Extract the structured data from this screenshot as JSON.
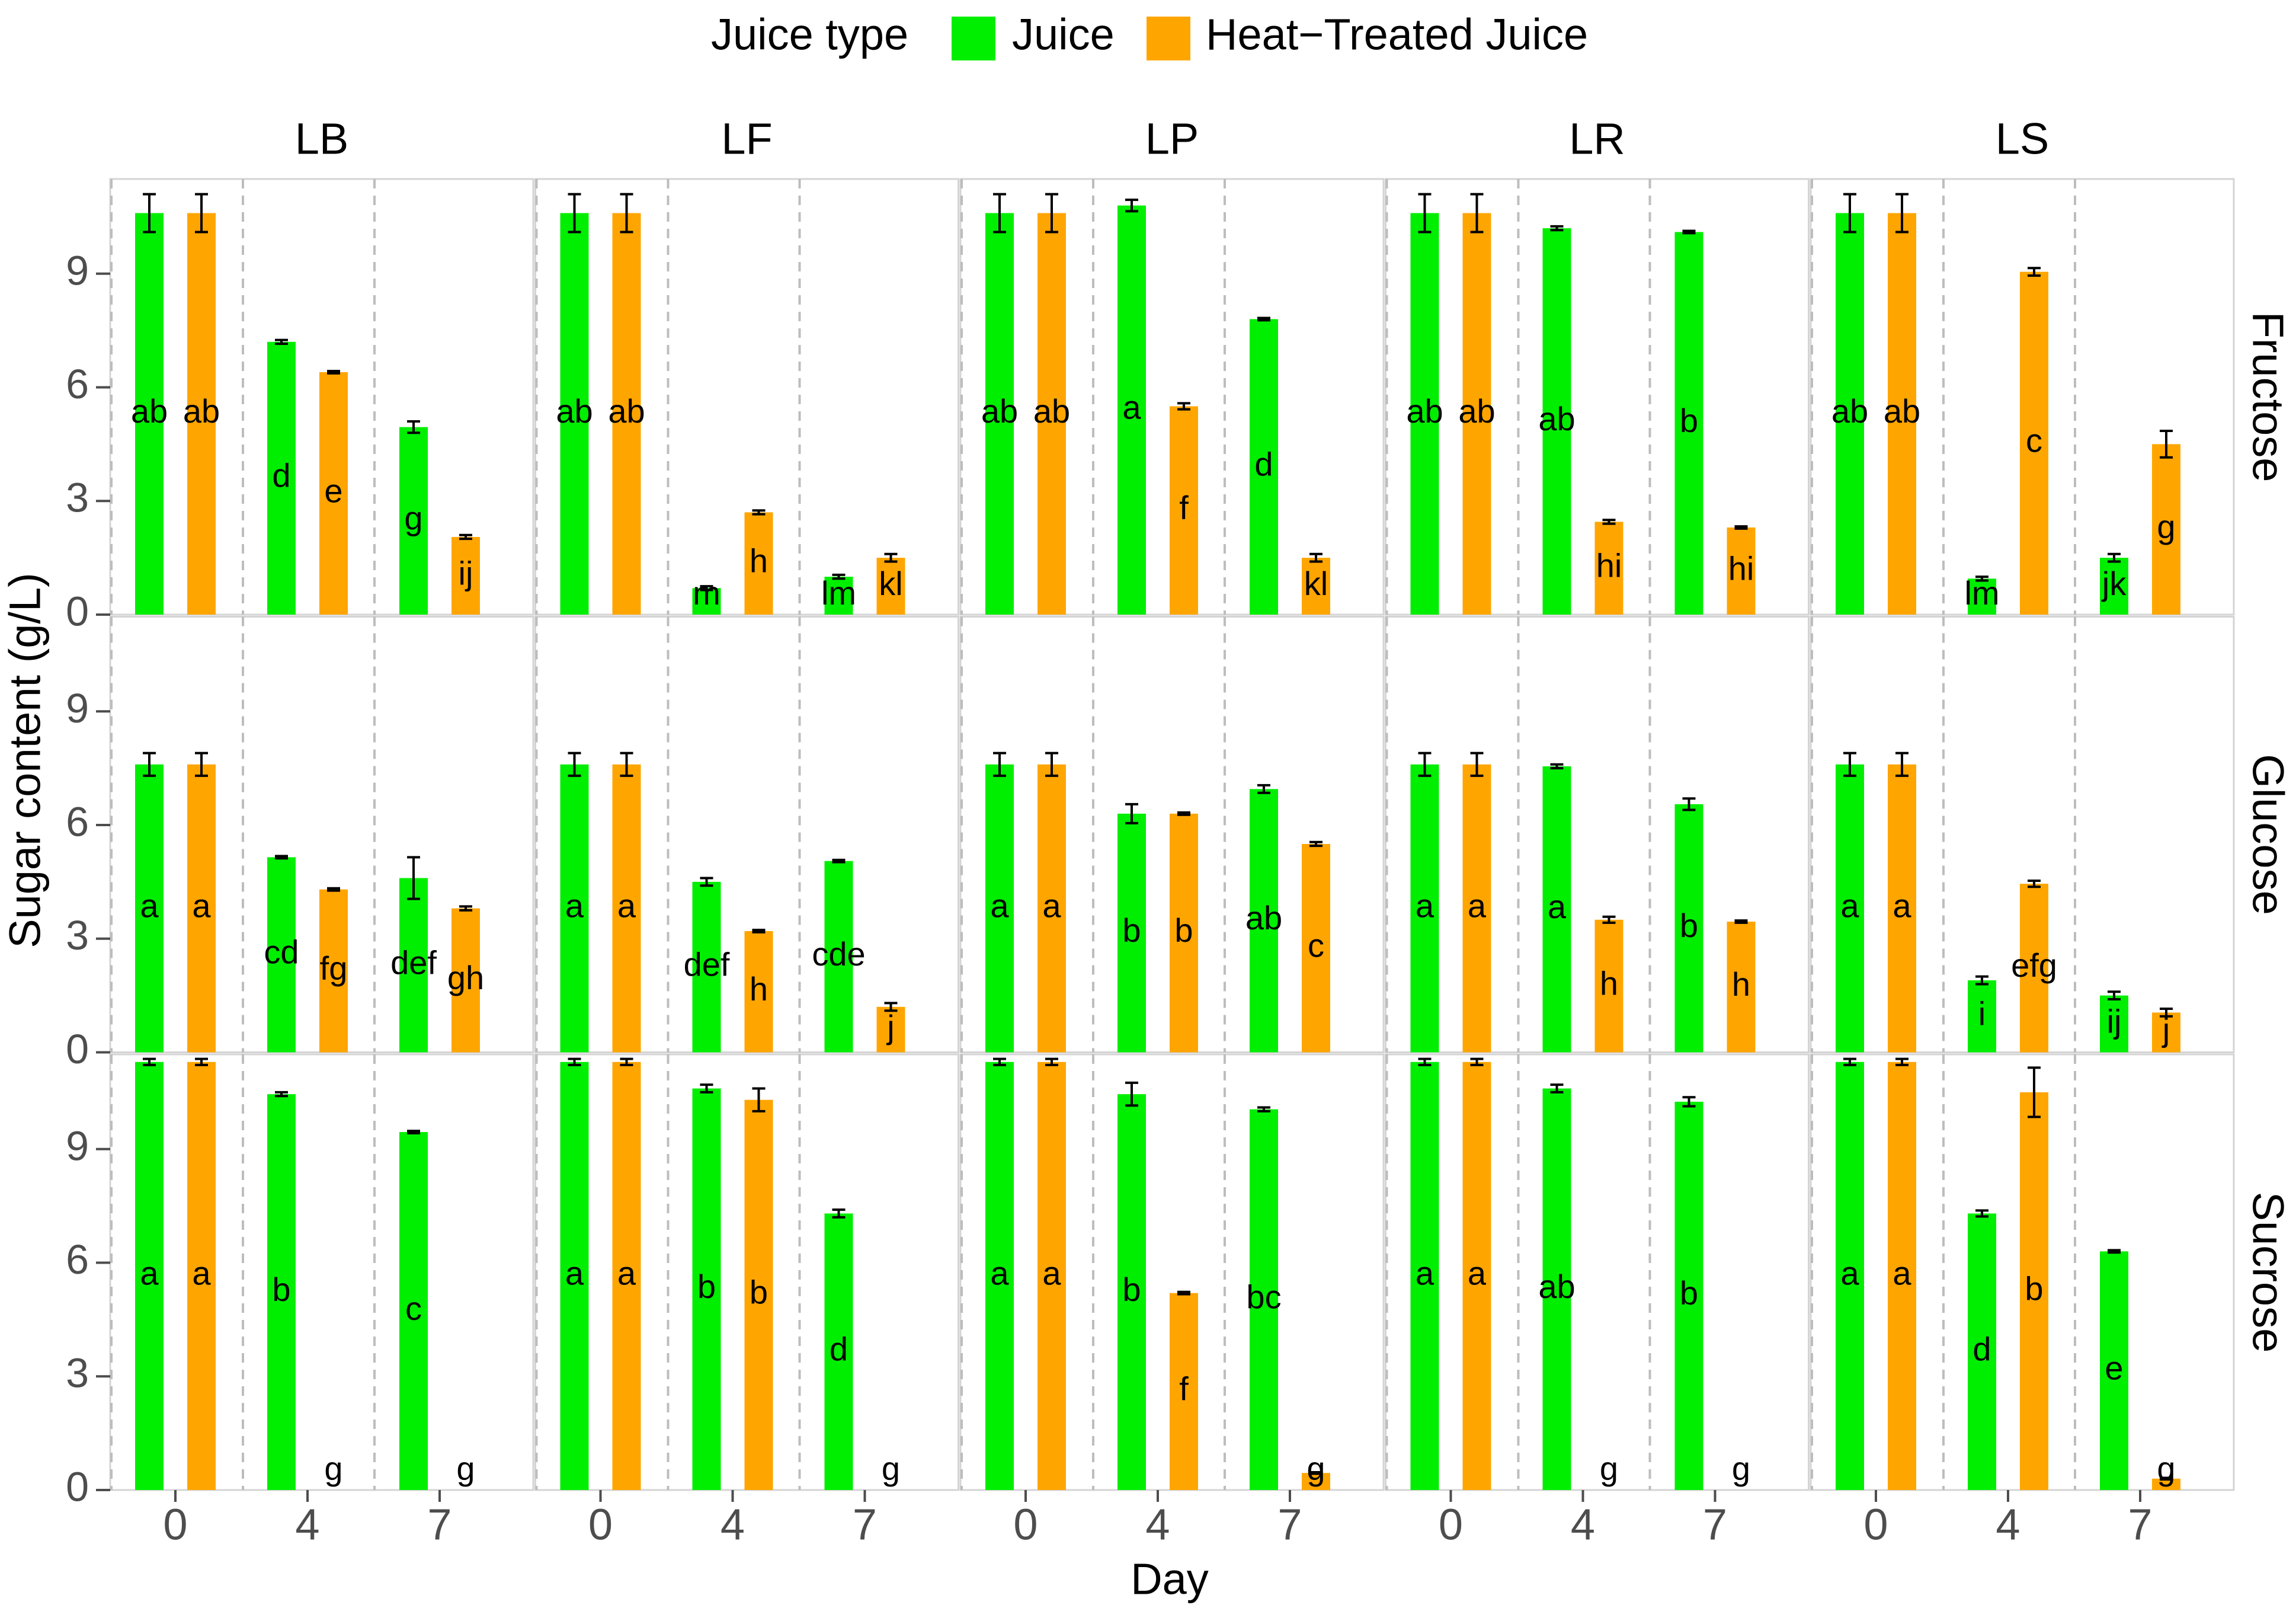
{
  "chart_data": {
    "type": "bar",
    "title": "",
    "xlabel": "Day",
    "ylabel": "Sugar content (g/L)",
    "ylim": [
      0,
      11.5
    ],
    "y_ticks": [
      "0",
      "3",
      "6",
      "9"
    ],
    "legend": {
      "title": "Juice type",
      "placement": "top",
      "entries": [
        {
          "name": "Juice",
          "color": "#00ee00"
        },
        {
          "name": "Heat−Treated Juice",
          "color": "#ffa500"
        }
      ]
    },
    "columns": [
      "LB",
      "LF",
      "LP",
      "LR",
      "LS"
    ],
    "rows": [
      "Fructose",
      "Glucose",
      "Sucrose"
    ],
    "categories": [
      "0",
      "4",
      "7"
    ],
    "series": [
      "Juice",
      "Heat−Treated Juice"
    ],
    "panels": [
      {
        "col": "LB",
        "row": "Fructose",
        "bars": [
          {
            "day": "0",
            "series": "Juice",
            "value": 10.6,
            "err": 0.5,
            "label": "ab"
          },
          {
            "day": "0",
            "series": "Heat−Treated Juice",
            "value": 10.6,
            "err": 0.5,
            "label": "ab"
          },
          {
            "day": "4",
            "series": "Juice",
            "value": 7.2,
            "err": 0.05,
            "label": "d"
          },
          {
            "day": "4",
            "series": "Heat−Treated Juice",
            "value": 6.4,
            "err": 0.03,
            "label": "e"
          },
          {
            "day": "7",
            "series": "Juice",
            "value": 4.95,
            "err": 0.15,
            "label": "g"
          },
          {
            "day": "7",
            "series": "Heat−Treated Juice",
            "value": 2.05,
            "err": 0.05,
            "label": "ij"
          }
        ]
      },
      {
        "col": "LF",
        "row": "Fructose",
        "bars": [
          {
            "day": "0",
            "series": "Juice",
            "value": 10.6,
            "err": 0.5,
            "label": "ab"
          },
          {
            "day": "0",
            "series": "Heat−Treated Juice",
            "value": 10.6,
            "err": 0.5,
            "label": "ab"
          },
          {
            "day": "4",
            "series": "Juice",
            "value": 0.7,
            "err": 0.05,
            "label": "m"
          },
          {
            "day": "4",
            "series": "Heat−Treated Juice",
            "value": 2.7,
            "err": 0.05,
            "label": "h"
          },
          {
            "day": "7",
            "series": "Juice",
            "value": 1.0,
            "err": 0.05,
            "label": "lm"
          },
          {
            "day": "7",
            "series": "Heat−Treated Juice",
            "value": 1.5,
            "err": 0.1,
            "label": "kl"
          }
        ]
      },
      {
        "col": "LP",
        "row": "Fructose",
        "bars": [
          {
            "day": "0",
            "series": "Juice",
            "value": 10.6,
            "err": 0.5,
            "label": "ab"
          },
          {
            "day": "0",
            "series": "Heat−Treated Juice",
            "value": 10.6,
            "err": 0.5,
            "label": "ab"
          },
          {
            "day": "4",
            "series": "Juice",
            "value": 10.8,
            "err": 0.15,
            "label": "a"
          },
          {
            "day": "4",
            "series": "Heat−Treated Juice",
            "value": 5.5,
            "err": 0.08,
            "label": "f"
          },
          {
            "day": "7",
            "series": "Juice",
            "value": 7.8,
            "err": 0.03,
            "label": "d"
          },
          {
            "day": "7",
            "series": "Heat−Treated Juice",
            "value": 1.5,
            "err": 0.1,
            "label": "kl"
          }
        ]
      },
      {
        "col": "LR",
        "row": "Fructose",
        "bars": [
          {
            "day": "0",
            "series": "Juice",
            "value": 10.6,
            "err": 0.5,
            "label": "ab"
          },
          {
            "day": "0",
            "series": "Heat−Treated Juice",
            "value": 10.6,
            "err": 0.5,
            "label": "ab"
          },
          {
            "day": "4",
            "series": "Juice",
            "value": 10.2,
            "err": 0.05,
            "label": "ab"
          },
          {
            "day": "4",
            "series": "Heat−Treated Juice",
            "value": 2.45,
            "err": 0.05,
            "label": "hi"
          },
          {
            "day": "7",
            "series": "Juice",
            "value": 10.1,
            "err": 0.03,
            "label": "b"
          },
          {
            "day": "7",
            "series": "Heat−Treated Juice",
            "value": 2.3,
            "err": 0.03,
            "label": "hi"
          }
        ]
      },
      {
        "col": "LS",
        "row": "Fructose",
        "bars": [
          {
            "day": "0",
            "series": "Juice",
            "value": 10.6,
            "err": 0.5,
            "label": "ab"
          },
          {
            "day": "0",
            "series": "Heat−Treated Juice",
            "value": 10.6,
            "err": 0.5,
            "label": "ab"
          },
          {
            "day": "4",
            "series": "Juice",
            "value": 0.95,
            "err": 0.05,
            "label": "lm"
          },
          {
            "day": "4",
            "series": "Heat−Treated Juice",
            "value": 9.05,
            "err": 0.1,
            "label": "c"
          },
          {
            "day": "7",
            "series": "Juice",
            "value": 1.5,
            "err": 0.1,
            "label": "jk"
          },
          {
            "day": "7",
            "series": "Heat−Treated Juice",
            "value": 4.5,
            "err": 0.35,
            "label": "g"
          }
        ]
      },
      {
        "col": "LB",
        "row": "Glucose",
        "bars": [
          {
            "day": "0",
            "series": "Juice",
            "value": 7.6,
            "err": 0.3,
            "label": "a"
          },
          {
            "day": "0",
            "series": "Heat−Treated Juice",
            "value": 7.6,
            "err": 0.3,
            "label": "a"
          },
          {
            "day": "4",
            "series": "Juice",
            "value": 5.15,
            "err": 0.03,
            "label": "cd"
          },
          {
            "day": "4",
            "series": "Heat−Treated Juice",
            "value": 4.3,
            "err": 0.03,
            "label": "fg"
          },
          {
            "day": "7",
            "series": "Juice",
            "value": 4.6,
            "err": 0.55,
            "label": "def"
          },
          {
            "day": "7",
            "series": "Heat−Treated Juice",
            "value": 3.8,
            "err": 0.05,
            "label": "gh"
          }
        ]
      },
      {
        "col": "LF",
        "row": "Glucose",
        "bars": [
          {
            "day": "0",
            "series": "Juice",
            "value": 7.6,
            "err": 0.3,
            "label": "a"
          },
          {
            "day": "0",
            "series": "Heat−Treated Juice",
            "value": 7.6,
            "err": 0.3,
            "label": "a"
          },
          {
            "day": "4",
            "series": "Juice",
            "value": 4.5,
            "err": 0.1,
            "label": "def"
          },
          {
            "day": "4",
            "series": "Heat−Treated Juice",
            "value": 3.2,
            "err": 0.03,
            "label": "h"
          },
          {
            "day": "7",
            "series": "Juice",
            "value": 5.05,
            "err": 0.03,
            "label": "cde"
          },
          {
            "day": "7",
            "series": "Heat−Treated Juice",
            "value": 1.2,
            "err": 0.1,
            "label": "j"
          }
        ]
      },
      {
        "col": "LP",
        "row": "Glucose",
        "bars": [
          {
            "day": "0",
            "series": "Juice",
            "value": 7.6,
            "err": 0.3,
            "label": "a"
          },
          {
            "day": "0",
            "series": "Heat−Treated Juice",
            "value": 7.6,
            "err": 0.3,
            "label": "a"
          },
          {
            "day": "4",
            "series": "Juice",
            "value": 6.3,
            "err": 0.25,
            "label": "b"
          },
          {
            "day": "4",
            "series": "Heat−Treated Juice",
            "value": 6.3,
            "err": 0.03,
            "label": "b"
          },
          {
            "day": "7",
            "series": "Juice",
            "value": 6.95,
            "err": 0.1,
            "label": "ab"
          },
          {
            "day": "7",
            "series": "Heat−Treated Juice",
            "value": 5.5,
            "err": 0.05,
            "label": "c"
          }
        ]
      },
      {
        "col": "LR",
        "row": "Glucose",
        "bars": [
          {
            "day": "0",
            "series": "Juice",
            "value": 7.6,
            "err": 0.3,
            "label": "a"
          },
          {
            "day": "0",
            "series": "Heat−Treated Juice",
            "value": 7.6,
            "err": 0.3,
            "label": "a"
          },
          {
            "day": "4",
            "series": "Juice",
            "value": 7.55,
            "err": 0.05,
            "label": "a"
          },
          {
            "day": "4",
            "series": "Heat−Treated Juice",
            "value": 3.5,
            "err": 0.08,
            "label": "h"
          },
          {
            "day": "7",
            "series": "Juice",
            "value": 6.55,
            "err": 0.15,
            "label": "b"
          },
          {
            "day": "7",
            "series": "Heat−Treated Juice",
            "value": 3.45,
            "err": 0.03,
            "label": "h"
          }
        ]
      },
      {
        "col": "LS",
        "row": "Glucose",
        "bars": [
          {
            "day": "0",
            "series": "Juice",
            "value": 7.6,
            "err": 0.3,
            "label": "a"
          },
          {
            "day": "0",
            "series": "Heat−Treated Juice",
            "value": 7.6,
            "err": 0.3,
            "label": "a"
          },
          {
            "day": "4",
            "series": "Juice",
            "value": 1.9,
            "err": 0.1,
            "label": "i"
          },
          {
            "day": "4",
            "series": "Heat−Treated Juice",
            "value": 4.45,
            "err": 0.08,
            "label": "efg"
          },
          {
            "day": "7",
            "series": "Juice",
            "value": 1.5,
            "err": 0.1,
            "label": "ij"
          },
          {
            "day": "7",
            "series": "Heat−Treated Juice",
            "value": 1.05,
            "err": 0.1,
            "label": "j"
          }
        ]
      },
      {
        "col": "LB",
        "row": "Sucrose",
        "bars": [
          {
            "day": "0",
            "series": "Juice",
            "value": 11.3,
            "err": 0.08,
            "label": "a"
          },
          {
            "day": "0",
            "series": "Heat−Treated Juice",
            "value": 11.3,
            "err": 0.08,
            "label": "a"
          },
          {
            "day": "4",
            "series": "Juice",
            "value": 10.45,
            "err": 0.05,
            "label": "b"
          },
          {
            "day": "4",
            "series": "Heat−Treated Juice",
            "value": 0,
            "err": 0,
            "label": "g"
          },
          {
            "day": "7",
            "series": "Juice",
            "value": 9.45,
            "err": 0.03,
            "label": "c"
          },
          {
            "day": "7",
            "series": "Heat−Treated Juice",
            "value": 0,
            "err": 0,
            "label": "g"
          }
        ]
      },
      {
        "col": "LF",
        "row": "Sucrose",
        "bars": [
          {
            "day": "0",
            "series": "Juice",
            "value": 11.3,
            "err": 0.08,
            "label": "a"
          },
          {
            "day": "0",
            "series": "Heat−Treated Juice",
            "value": 11.3,
            "err": 0.08,
            "label": "a"
          },
          {
            "day": "4",
            "series": "Juice",
            "value": 10.6,
            "err": 0.1,
            "label": "b"
          },
          {
            "day": "4",
            "series": "Heat−Treated Juice",
            "value": 10.3,
            "err": 0.3,
            "label": "b"
          },
          {
            "day": "7",
            "series": "Juice",
            "value": 7.3,
            "err": 0.1,
            "label": "d"
          },
          {
            "day": "7",
            "series": "Heat−Treated Juice",
            "value": 0,
            "err": 0,
            "label": "g"
          }
        ]
      },
      {
        "col": "LP",
        "row": "Sucrose",
        "bars": [
          {
            "day": "0",
            "series": "Juice",
            "value": 11.3,
            "err": 0.08,
            "label": "a"
          },
          {
            "day": "0",
            "series": "Heat−Treated Juice",
            "value": 11.3,
            "err": 0.08,
            "label": "a"
          },
          {
            "day": "4",
            "series": "Juice",
            "value": 10.45,
            "err": 0.3,
            "label": "b"
          },
          {
            "day": "4",
            "series": "Heat−Treated Juice",
            "value": 5.2,
            "err": 0.03,
            "label": "f"
          },
          {
            "day": "7",
            "series": "Juice",
            "value": 10.05,
            "err": 0.05,
            "label": "bc"
          },
          {
            "day": "7",
            "series": "Heat−Treated Juice",
            "value": 0.45,
            "err": 0.02,
            "label": "g"
          }
        ]
      },
      {
        "col": "LR",
        "row": "Sucrose",
        "bars": [
          {
            "day": "0",
            "series": "Juice",
            "value": 11.3,
            "err": 0.08,
            "label": "a"
          },
          {
            "day": "0",
            "series": "Heat−Treated Juice",
            "value": 11.3,
            "err": 0.08,
            "label": "a"
          },
          {
            "day": "4",
            "series": "Juice",
            "value": 10.6,
            "err": 0.1,
            "label": "ab"
          },
          {
            "day": "4",
            "series": "Heat−Treated Juice",
            "value": 0,
            "err": 0,
            "label": "g"
          },
          {
            "day": "7",
            "series": "Juice",
            "value": 10.25,
            "err": 0.12,
            "label": "b"
          },
          {
            "day": "7",
            "series": "Heat−Treated Juice",
            "value": 0,
            "err": 0,
            "label": "g"
          }
        ]
      },
      {
        "col": "LS",
        "row": "Sucrose",
        "bars": [
          {
            "day": "0",
            "series": "Juice",
            "value": 11.3,
            "err": 0.08,
            "label": "a"
          },
          {
            "day": "0",
            "series": "Heat−Treated Juice",
            "value": 11.3,
            "err": 0.08,
            "label": "a"
          },
          {
            "day": "4",
            "series": "Juice",
            "value": 7.3,
            "err": 0.08,
            "label": "d"
          },
          {
            "day": "4",
            "series": "Heat−Treated Juice",
            "value": 10.5,
            "err": 0.65,
            "label": "b"
          },
          {
            "day": "7",
            "series": "Juice",
            "value": 6.3,
            "err": 0.03,
            "label": "e"
          },
          {
            "day": "7",
            "series": "Heat−Treated Juice",
            "value": 0.3,
            "err": 0.02,
            "label": "g"
          }
        ]
      }
    ]
  }
}
